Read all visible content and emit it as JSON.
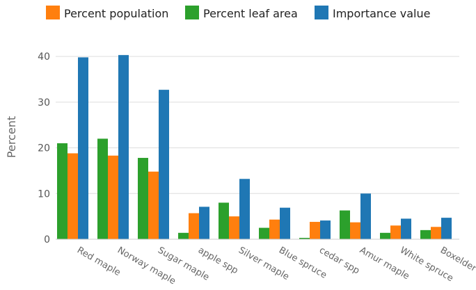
{
  "chart_data": {
    "type": "bar",
    "categories": [
      "Red maple",
      "Norway maple",
      "Sugar maple",
      "apple spp",
      "Silver maple",
      "Blue spruce",
      "cedar spp",
      "Amur maple",
      "White spruce",
      "Boxelder"
    ],
    "series": [
      {
        "name": "Percent leaf area",
        "color": "#2ca02c",
        "values": [
          21.0,
          22.0,
          17.8,
          1.4,
          8.0,
          2.5,
          0.3,
          6.3,
          1.4,
          2.0
        ]
      },
      {
        "name": "Percent population",
        "color": "#ff7f0e",
        "values": [
          18.8,
          18.3,
          14.8,
          5.7,
          5.0,
          4.3,
          3.8,
          3.7,
          3.0,
          2.7
        ]
      },
      {
        "name": "Importance value",
        "color": "#1f77b4",
        "values": [
          39.8,
          40.3,
          32.7,
          7.1,
          13.2,
          6.9,
          4.1,
          10.0,
          4.5,
          4.7
        ]
      }
    ],
    "legend_order": [
      "Percent population",
      "Percent leaf area",
      "Importance value"
    ],
    "legend_position": "top",
    "ylabel": "Percent",
    "xlabel": "",
    "ylim": [
      0,
      42
    ],
    "yticks": [
      0,
      10,
      20,
      30,
      40
    ],
    "grid": true,
    "grid_color": "#dddddd"
  }
}
